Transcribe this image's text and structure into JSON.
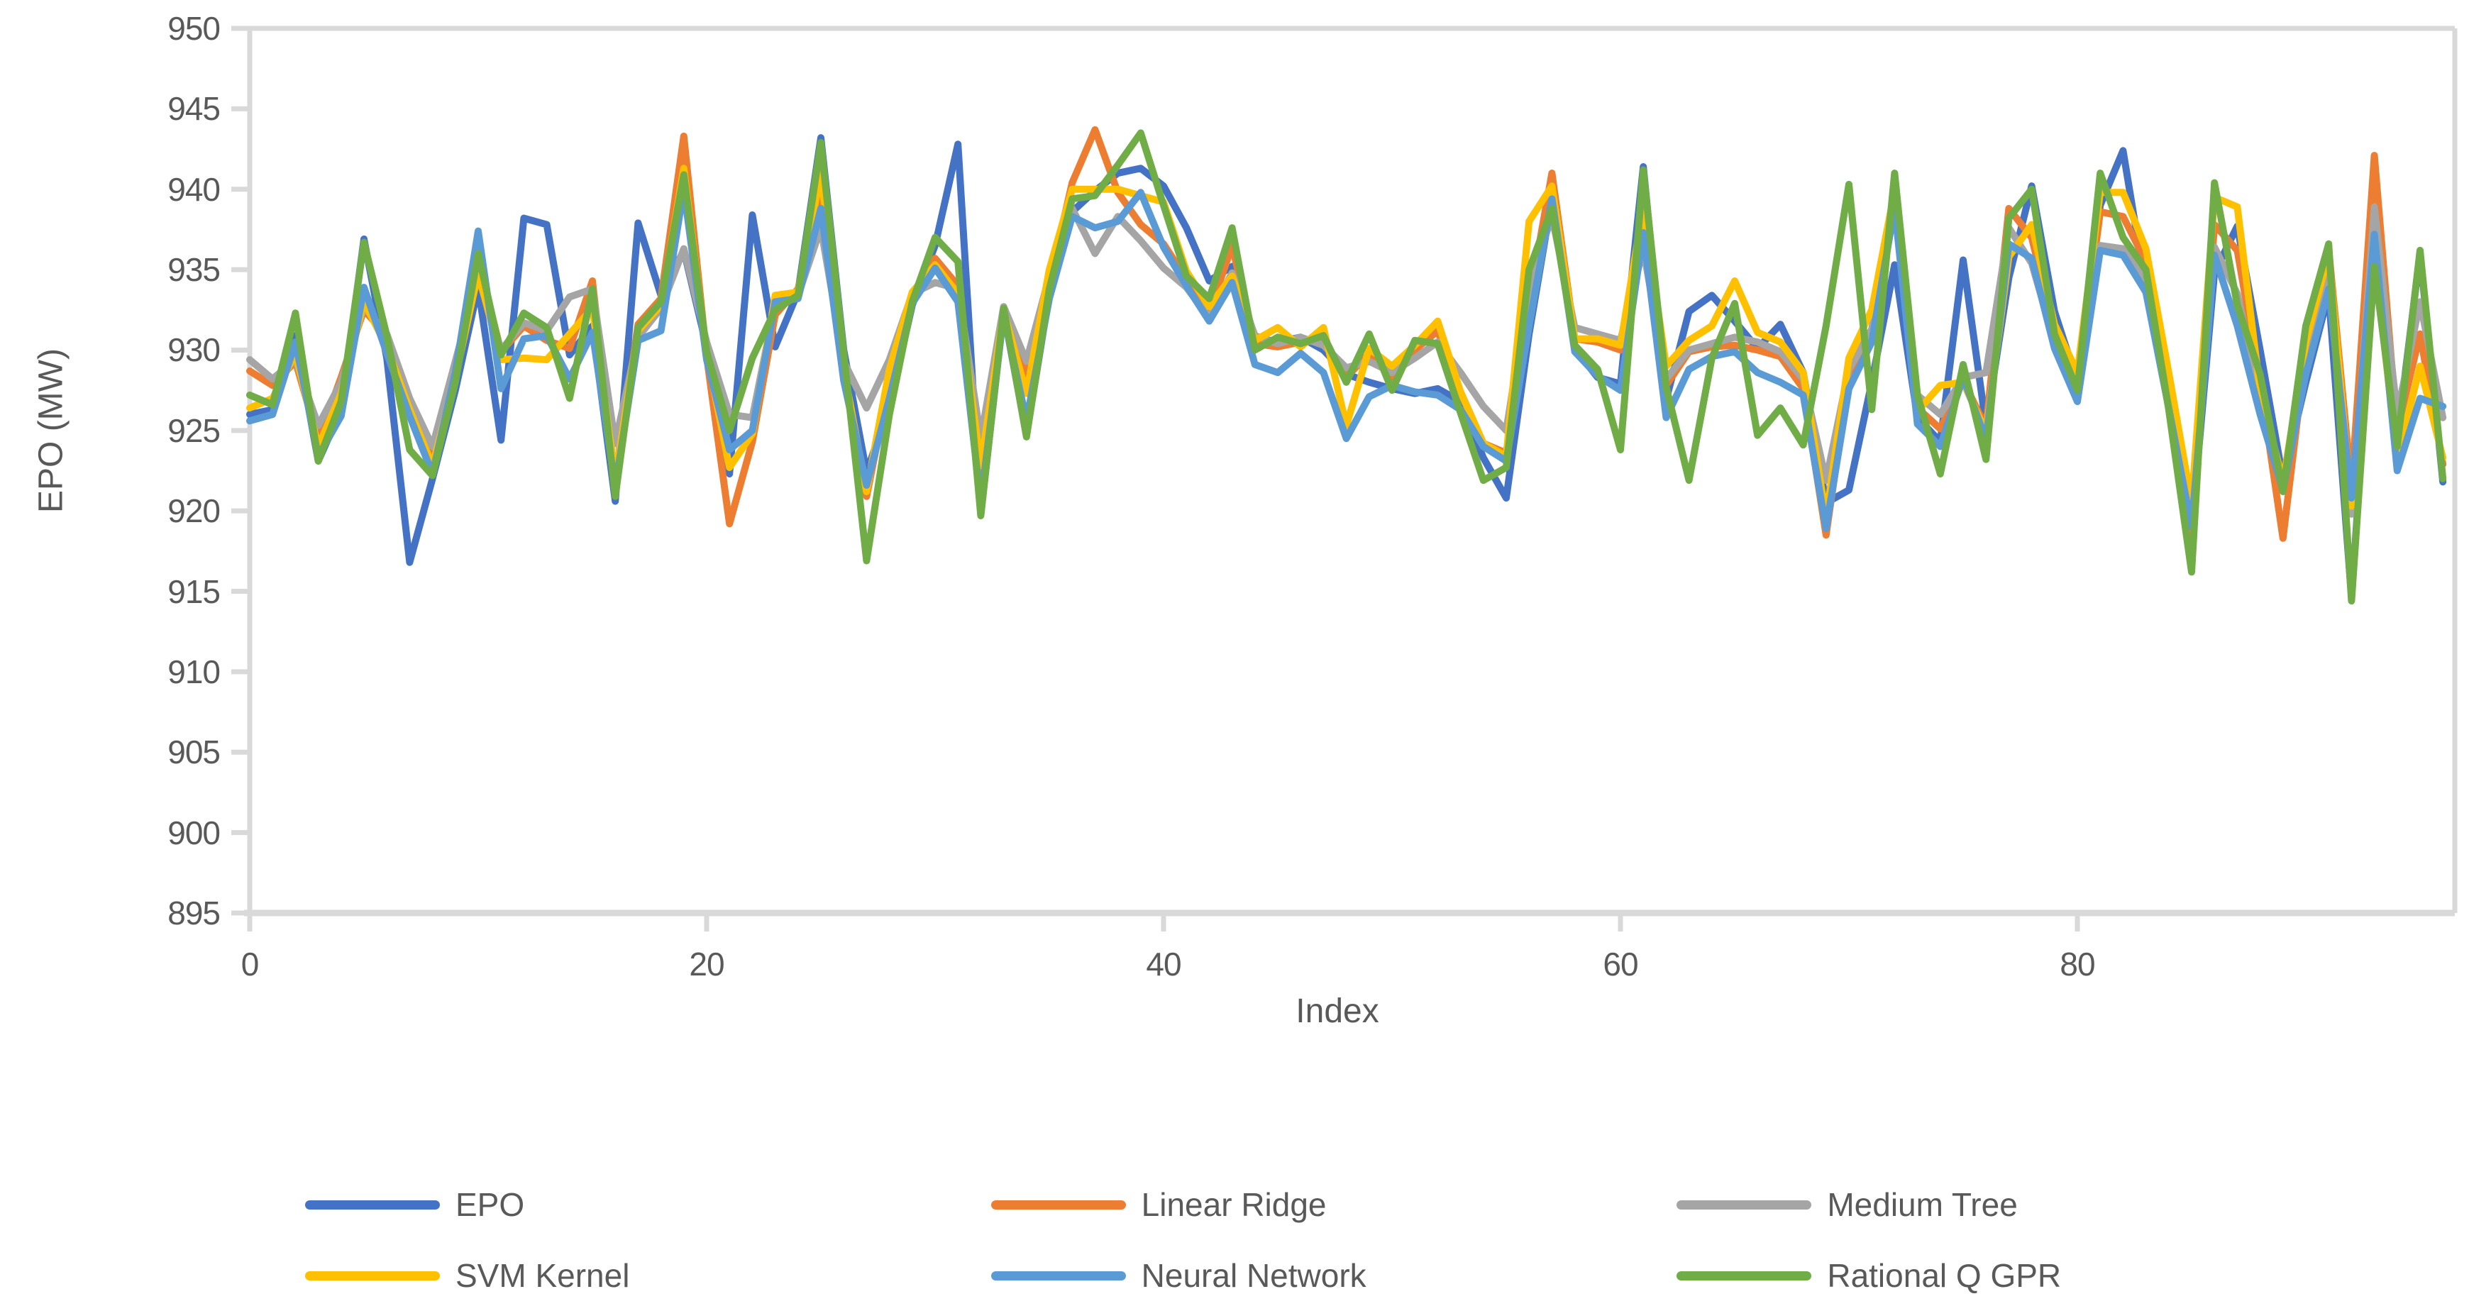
{
  "axis": {
    "y_title": "EPO (MW)",
    "x_title": "Index",
    "y_ticks": [
      950,
      945,
      940,
      935,
      930,
      925,
      920,
      915,
      910,
      905,
      900,
      895
    ],
    "x_ticks": [
      0,
      20,
      40,
      60,
      80
    ],
    "y_min": 895,
    "y_max": 950,
    "axis_color": "#d9d9d9",
    "label_color": "#595959"
  },
  "chart_data": {
    "type": "line",
    "title": "",
    "xlabel": "Index",
    "ylabel": "EPO (MW)",
    "xlim": [
      0,
      97
    ],
    "ylim": [
      895,
      950
    ],
    "grid": false,
    "legend_position": "bottom",
    "x": [
      0,
      1,
      2,
      3,
      4,
      5,
      6,
      7,
      8,
      9,
      10,
      11,
      12,
      13,
      14,
      15,
      16,
      17,
      18,
      19,
      20,
      21,
      22,
      23,
      24,
      25,
      26,
      27,
      28,
      29,
      30,
      31,
      32,
      33,
      34,
      35,
      36,
      37,
      38,
      39,
      40,
      41,
      42,
      43,
      44,
      45,
      46,
      47,
      48,
      49,
      50,
      51,
      52,
      53,
      54,
      55,
      56,
      57,
      58,
      59,
      60,
      61,
      62,
      63,
      64,
      65,
      66,
      67,
      68,
      69,
      70,
      71,
      72,
      73,
      74,
      75,
      76,
      77,
      78,
      79,
      80,
      81,
      82,
      83,
      84,
      85,
      86,
      87,
      88,
      89,
      90,
      91,
      92,
      93,
      94,
      95,
      96
    ],
    "series": [
      {
        "name": "EPO",
        "color": "#4472C4",
        "values": [
          926.0,
          926.3,
          930.9,
          923.1,
          926.3,
          936.9,
          929.5,
          916.8,
          922.0,
          927.5,
          933.9,
          924.4,
          938.2,
          937.8,
          929.7,
          931.5,
          920.6,
          937.9,
          933.4,
          936.2,
          930.2,
          922.3,
          938.4,
          930.2,
          933.6,
          943.2,
          930.0,
          922.4,
          926.5,
          932.8,
          936.5,
          942.8,
          919.8,
          932.4,
          924.7,
          933.5,
          938.6,
          939.9,
          941.0,
          941.3,
          940.2,
          937.6,
          934.3,
          935.2,
          930.8,
          930.5,
          930.8,
          930.0,
          928.5,
          928.0,
          927.6,
          927.3,
          927.6,
          926.8,
          923.3,
          920.8,
          931.0,
          939.4,
          930.1,
          928.3,
          927.9,
          941.4,
          926.9,
          932.4,
          933.4,
          931.8,
          930.1,
          931.6,
          928.6,
          920.5,
          921.3,
          928.0,
          935.3,
          925.8,
          924.3,
          935.6,
          925.3,
          934.5,
          940.2,
          932.4,
          928.0,
          939.0,
          942.4,
          933.8,
          926.4,
          918.8,
          934.8,
          937.7,
          930.0,
          922.0,
          928.0,
          933.5,
          914.6,
          935.4,
          924.5,
          936.0,
          921.8
        ]
      },
      {
        "name": "Linear Ridge",
        "color": "#ED7D31",
        "values": [
          928.7,
          927.8,
          929.3,
          924.4,
          928.3,
          932.5,
          930.9,
          926.8,
          923.5,
          929.0,
          935.6,
          929.9,
          931.5,
          930.6,
          930.1,
          934.3,
          921.8,
          931.6,
          933.2,
          943.3,
          929.6,
          919.2,
          924.3,
          932.2,
          933.8,
          939.6,
          928.4,
          920.9,
          928.0,
          933.2,
          935.7,
          934.0,
          921.4,
          932.6,
          928.4,
          934.2,
          940.4,
          943.7,
          939.8,
          937.8,
          936.6,
          934.4,
          932.3,
          936.5,
          930.4,
          930.2,
          930.5,
          930.6,
          928.3,
          929.8,
          928.3,
          930.0,
          931.2,
          927.4,
          924.2,
          923.6,
          933.0,
          941.0,
          930.7,
          930.5,
          930.0,
          938.3,
          927.8,
          929.9,
          930.2,
          930.3,
          930.0,
          929.6,
          927.6,
          918.5,
          928.3,
          931.0,
          939.3,
          926.4,
          925.1,
          928.1,
          925.2,
          938.8,
          937.0,
          931.2,
          927.7,
          938.6,
          938.3,
          935.5,
          928.0,
          918.0,
          937.8,
          936.2,
          928.0,
          918.3,
          930.0,
          936.3,
          921.5,
          942.1,
          925.0,
          931.0,
          922.9
        ]
      },
      {
        "name": "Medium Tree",
        "color": "#A5A5A5",
        "values": [
          929.4,
          928.2,
          929.4,
          925.3,
          928.0,
          932.7,
          931.0,
          927.0,
          924.0,
          929.3,
          934.6,
          930.0,
          931.7,
          931.2,
          933.3,
          933.8,
          924.2,
          930.8,
          932.6,
          936.3,
          930.5,
          926.0,
          925.8,
          932.9,
          933.4,
          937.6,
          929.3,
          926.4,
          929.4,
          933.5,
          934.2,
          933.8,
          924.5,
          932.7,
          929.3,
          934.6,
          938.8,
          936.0,
          938.3,
          936.8,
          935.1,
          933.9,
          932.0,
          934.8,
          930.9,
          930.4,
          930.8,
          930.3,
          928.9,
          929.3,
          928.6,
          929.5,
          930.5,
          928.6,
          926.5,
          925.0,
          934.0,
          938.3,
          931.4,
          931.0,
          930.6,
          936.3,
          928.2,
          930.0,
          930.4,
          930.8,
          930.5,
          929.9,
          928.2,
          921.9,
          928.8,
          931.3,
          938.7,
          927.2,
          926.0,
          928.3,
          928.6,
          937.6,
          935.4,
          930.5,
          927.1,
          936.5,
          936.3,
          934.2,
          927.1,
          919.8,
          936.4,
          933.5,
          927.0,
          921.5,
          929.5,
          934.5,
          919.8,
          938.9,
          926.0,
          933.0,
          925.8
        ]
      },
      {
        "name": "SVM Kernel",
        "color": "#FFC000",
        "values": [
          926.4,
          927.0,
          929.8,
          924.0,
          927.3,
          933.0,
          930.2,
          926.3,
          922.8,
          928.3,
          934.8,
          929.4,
          929.5,
          929.4,
          931.0,
          932.6,
          922.0,
          931.2,
          932.8,
          941.3,
          929.8,
          922.7,
          924.8,
          933.4,
          933.6,
          941.0,
          928.8,
          921.2,
          928.8,
          933.6,
          935.3,
          933.5,
          922.8,
          932.4,
          927.3,
          935.0,
          940.0,
          940.0,
          940.0,
          939.6,
          939.2,
          934.9,
          932.7,
          934.6,
          930.6,
          931.4,
          930.2,
          931.4,
          925.3,
          930.1,
          929.0,
          930.3,
          931.8,
          927.4,
          924.2,
          923.4,
          938.0,
          940.2,
          930.7,
          930.7,
          930.3,
          938.9,
          929.0,
          930.6,
          931.5,
          934.3,
          931.1,
          930.5,
          928.6,
          919.6,
          929.5,
          932.5,
          939.9,
          926.2,
          927.8,
          928.0,
          924.9,
          935.8,
          937.8,
          931.6,
          928.6,
          939.8,
          939.8,
          936.3,
          928.6,
          920.5,
          939.5,
          938.9,
          927.5,
          921.8,
          930.5,
          936.0,
          920.3,
          935.8,
          923.2,
          929.0,
          923.3
        ]
      },
      {
        "name": "Neural Network",
        "color": "#5B9BD5",
        "values": [
          925.6,
          926.0,
          930.5,
          923.4,
          925.9,
          933.9,
          929.8,
          925.9,
          922.3,
          928.6,
          937.4,
          927.6,
          930.7,
          930.9,
          928.2,
          931.1,
          921.5,
          930.6,
          931.2,
          940.0,
          929.4,
          923.8,
          925.0,
          933.0,
          933.2,
          938.8,
          928.1,
          921.6,
          927.0,
          932.9,
          935.1,
          933.0,
          920.5,
          932.2,
          925.6,
          933.2,
          938.3,
          937.6,
          938.0,
          939.8,
          936.4,
          934.0,
          931.8,
          934.2,
          929.1,
          928.6,
          929.8,
          928.6,
          924.5,
          927.1,
          927.8,
          927.4,
          927.2,
          926.3,
          924.0,
          923.1,
          931.5,
          939.4,
          929.9,
          928.4,
          927.5,
          937.3,
          925.8,
          928.8,
          929.6,
          929.9,
          928.6,
          928.0,
          927.2,
          918.9,
          927.6,
          930.5,
          938.9,
          925.4,
          924.0,
          928.3,
          924.4,
          936.6,
          935.7,
          930.1,
          926.8,
          936.2,
          935.9,
          933.6,
          926.4,
          919.0,
          935.9,
          931.5,
          926.0,
          921.3,
          928.5,
          933.8,
          920.8,
          937.2,
          922.5,
          927.0,
          926.5
        ]
      },
      {
        "name": "Rational Q GPR",
        "color": "#70AD47",
        "values": [
          927.2,
          926.6,
          932.3,
          923.1,
          926.8,
          936.7,
          930.9,
          923.8,
          922.2,
          928.0,
          936.0,
          929.7,
          932.3,
          931.4,
          927.0,
          933.8,
          920.9,
          931.4,
          933.0,
          940.9,
          929.9,
          925.0,
          929.5,
          932.5,
          933.4,
          942.9,
          929.8,
          916.9,
          926.0,
          933.0,
          937.0,
          935.5,
          919.7,
          932.6,
          924.6,
          933.8,
          939.4,
          939.6,
          941.5,
          943.5,
          939.0,
          934.6,
          933.2,
          937.6,
          930.0,
          930.8,
          930.4,
          930.9,
          928.0,
          931.0,
          927.5,
          930.6,
          930.4,
          926.1,
          921.9,
          922.7,
          935.0,
          938.8,
          930.3,
          928.8,
          923.8,
          941.2,
          927.7,
          921.9,
          929.5,
          932.9,
          924.7,
          926.4,
          924.1,
          931.5,
          940.3,
          926.3,
          941.0,
          927.2,
          922.3,
          929.1,
          923.2,
          938.2,
          940.0,
          931.0,
          927.5,
          941.0,
          937.0,
          935.0,
          926.3,
          916.2,
          940.4,
          932.8,
          928.5,
          921.2,
          931.5,
          936.6,
          914.4,
          935.2,
          924.0,
          936.2,
          922.0
        ]
      }
    ]
  },
  "legend": {
    "rows": [
      [
        {
          "label": "EPO",
          "color": "#4472C4"
        },
        {
          "label": "Linear Ridge",
          "color": "#ED7D31"
        },
        {
          "label": "Medium Tree",
          "color": "#A5A5A5"
        }
      ],
      [
        {
          "label": "SVM Kernel",
          "color": "#FFC000"
        },
        {
          "label": "Neural Network",
          "color": "#5B9BD5"
        },
        {
          "label": "Rational Q GPR",
          "color": "#70AD47"
        }
      ]
    ]
  }
}
